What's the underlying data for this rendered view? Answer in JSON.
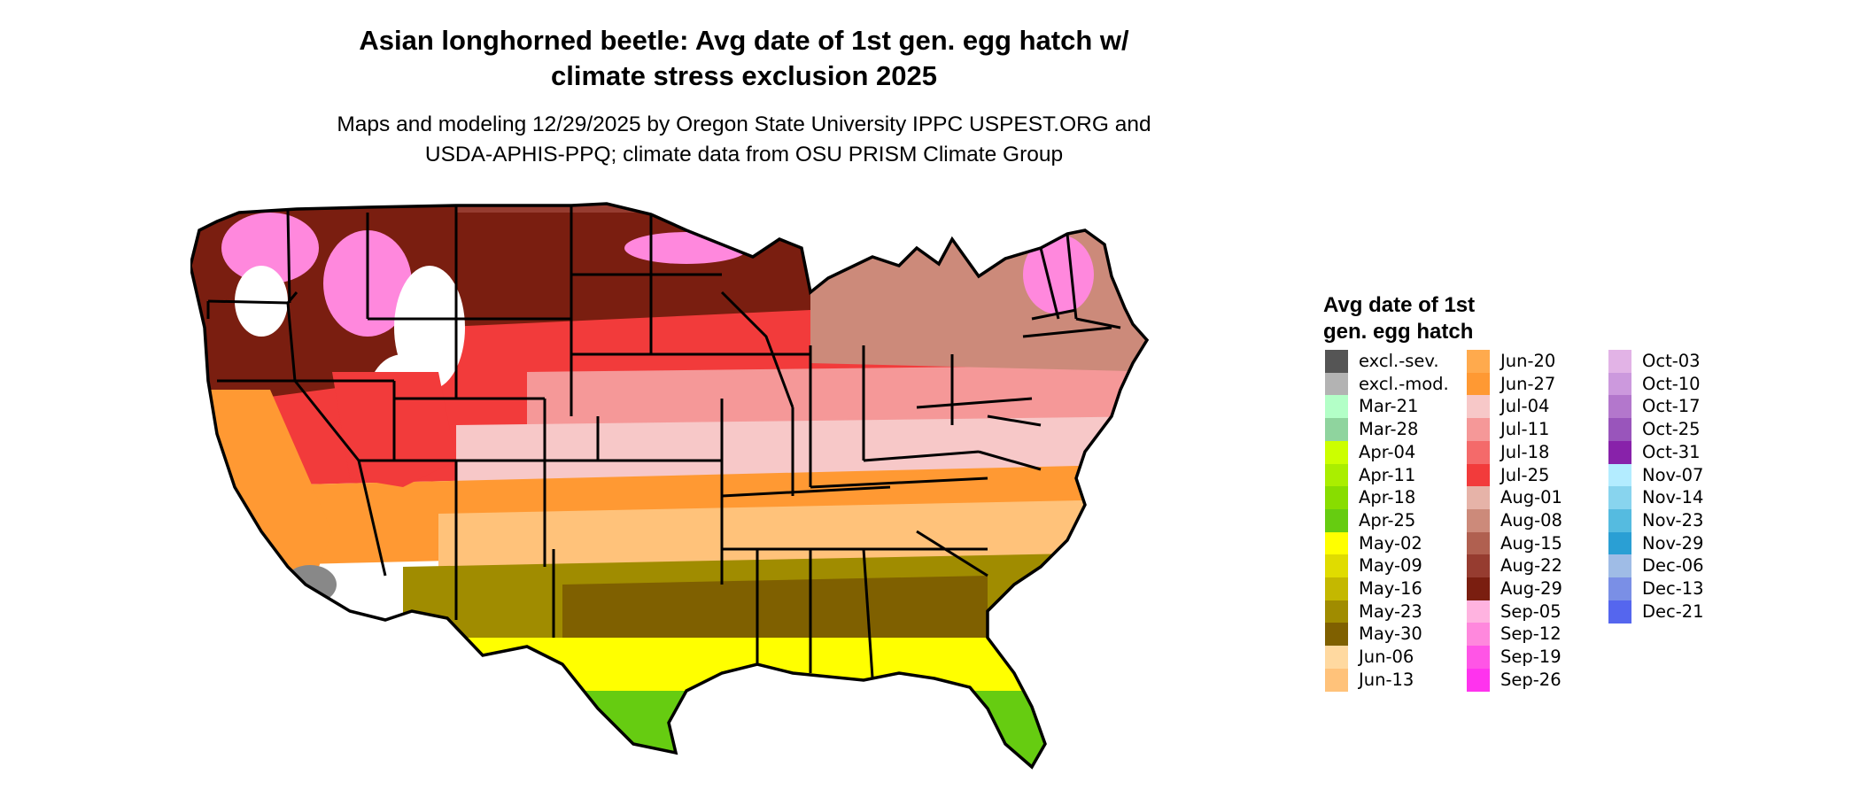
{
  "header": {
    "title_line1": "Asian longhorned beetle: Avg date of 1st gen. egg hatch w/",
    "title_line2": "climate stress exclusion 2025",
    "subtitle_line1": "Maps and modeling 12/29/2025 by Oregon State University IPPC USPEST.ORG and",
    "subtitle_line2": "USDA-APHIS-PPQ; climate data from OSU PRISM Climate Group"
  },
  "legend": {
    "title_line1": "Avg date of 1st",
    "title_line2": "gen. egg hatch",
    "columns": [
      [
        {
          "label": "excl.-sev.",
          "color": "#555555"
        },
        {
          "label": "excl.-mod.",
          "color": "#b3b3b3"
        },
        {
          "label": "Mar-21",
          "color": "#b3ffc7"
        },
        {
          "label": "Mar-28",
          "color": "#8fd49e"
        },
        {
          "label": "Apr-04",
          "color": "#ccff00"
        },
        {
          "label": "Apr-11",
          "color": "#aaee00"
        },
        {
          "label": "Apr-18",
          "color": "#88dd00"
        },
        {
          "label": "Apr-25",
          "color": "#66cc11"
        },
        {
          "label": "May-02",
          "color": "#ffff00"
        },
        {
          "label": "May-09",
          "color": "#e0dc00"
        },
        {
          "label": "May-16",
          "color": "#c4b800"
        },
        {
          "label": "May-23",
          "color": "#a08c00"
        },
        {
          "label": "May-30",
          "color": "#7f6000"
        },
        {
          "label": "Jun-06",
          "color": "#ffd9a0"
        },
        {
          "label": "Jun-13",
          "color": "#ffc27a"
        }
      ],
      [
        {
          "label": "Jun-20",
          "color": "#ffaa4d"
        },
        {
          "label": "Jun-27",
          "color": "#ff9933"
        },
        {
          "label": "Jul-04",
          "color": "#f7c8c8"
        },
        {
          "label": "Jul-11",
          "color": "#f59898"
        },
        {
          "label": "Jul-18",
          "color": "#f46a6a"
        },
        {
          "label": "Jul-25",
          "color": "#f23b3b"
        },
        {
          "label": "Aug-01",
          "color": "#e6b3a8"
        },
        {
          "label": "Aug-08",
          "color": "#cc8a7a"
        },
        {
          "label": "Aug-15",
          "color": "#b06050"
        },
        {
          "label": "Aug-22",
          "color": "#963c30"
        },
        {
          "label": "Aug-29",
          "color": "#7a1e10"
        },
        {
          "label": "Sep-05",
          "color": "#ffb3e0"
        },
        {
          "label": "Sep-12",
          "color": "#ff88dd"
        },
        {
          "label": "Sep-19",
          "color": "#ff55e6"
        },
        {
          "label": "Sep-26",
          "color": "#ff33ee"
        }
      ],
      [
        {
          "label": "Oct-03",
          "color": "#e2b3e6"
        },
        {
          "label": "Oct-10",
          "color": "#cc99dd"
        },
        {
          "label": "Oct-17",
          "color": "#b377cc"
        },
        {
          "label": "Oct-25",
          "color": "#9955bb"
        },
        {
          "label": "Oct-31",
          "color": "#8822aa"
        },
        {
          "label": "Nov-07",
          "color": "#b3ecff"
        },
        {
          "label": "Nov-14",
          "color": "#88d4ee"
        },
        {
          "label": "Nov-23",
          "color": "#55bbe0"
        },
        {
          "label": "Nov-29",
          "color": "#2a9fd4"
        },
        {
          "label": "Dec-06",
          "color": "#9fbce6"
        },
        {
          "label": "Dec-13",
          "color": "#7a8fe6"
        },
        {
          "label": "Dec-21",
          "color": "#5566ee"
        }
      ]
    ]
  },
  "map": {
    "colors": {
      "state_border": "#000000",
      "north_dark_brown": "#7a1e10",
      "north_mid_brown": "#963c30",
      "north_light_brown": "#cc8a7a",
      "mountain_pink": "#ff88dd",
      "snow_white": "#ffffff",
      "plains_red": "#f23b3b",
      "plains_pink": "#f59898",
      "central_light_pink": "#f7c8c8",
      "south_orange": "#ff9933",
      "south_light_orange": "#ffc27a",
      "gulf_olive": "#a08c00",
      "gulf_dark_olive": "#7f6000",
      "gulf_yellow": "#ffff00",
      "south_green": "#66cc11",
      "desert_gray": "#888888"
    }
  }
}
